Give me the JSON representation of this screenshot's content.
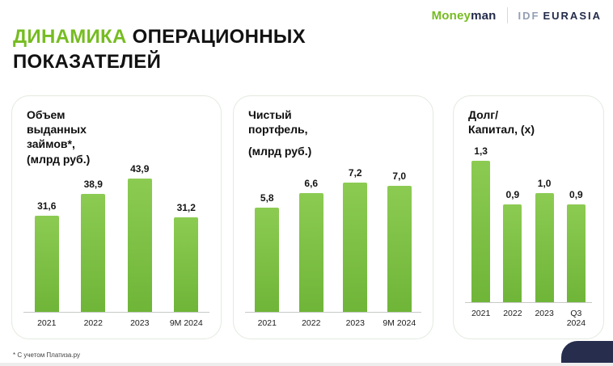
{
  "header": {
    "moneyman_green": "Money",
    "moneyman_dark": "man",
    "idf": "IDF",
    "eurasia": "EURASIA"
  },
  "title": {
    "line1_accent": "ДИНАМИКА",
    "line1_rest": " ОПЕРАЦИОННЫХ",
    "line2": "ПОКАЗАТЕЛЕЙ"
  },
  "footnote": "* С учетом Платиза.ру",
  "colors": {
    "accent_green": "#76BC21",
    "bar_green_top": "#8CCB52",
    "bar_green_bottom": "#6FB538",
    "navy": "#262D4D"
  },
  "chart_data": [
    {
      "type": "bar",
      "title": "Объем выданных займов*, (млрд руб.)",
      "title_lines": [
        "Объем",
        "выданных",
        "займов*,",
        "(млрд руб.)"
      ],
      "categories": [
        "2021",
        "2022",
        "2023",
        "9M 2024"
      ],
      "values": [
        31.6,
        38.9,
        43.9,
        31.2
      ],
      "labels": [
        "31,6",
        "38,9",
        "43,9",
        "31,2"
      ],
      "legend": "none",
      "grid": false
    },
    {
      "type": "bar",
      "title": "Чистый портфель, (млрд руб.)",
      "title_lines": [
        "Чистый",
        "портфель,",
        "",
        "(млрд руб.)"
      ],
      "categories": [
        "2021",
        "2022",
        "2023",
        "9M 2024"
      ],
      "values": [
        5.8,
        6.6,
        7.2,
        7.0
      ],
      "labels": [
        "5,8",
        "6,6",
        "7,2",
        "7,0"
      ],
      "legend": "none",
      "grid": false
    },
    {
      "type": "bar",
      "title": "Долг/ Капитал, (x)",
      "title_lines": [
        "Долг/",
        "Капитал, (x)"
      ],
      "categories": [
        "2021",
        "2022",
        "2023",
        "Q3\n2024"
      ],
      "values": [
        1.3,
        0.9,
        1.0,
        0.9
      ],
      "labels": [
        "1,3",
        "0,9",
        "1,0",
        "0,9"
      ],
      "legend": "none",
      "grid": false
    }
  ]
}
